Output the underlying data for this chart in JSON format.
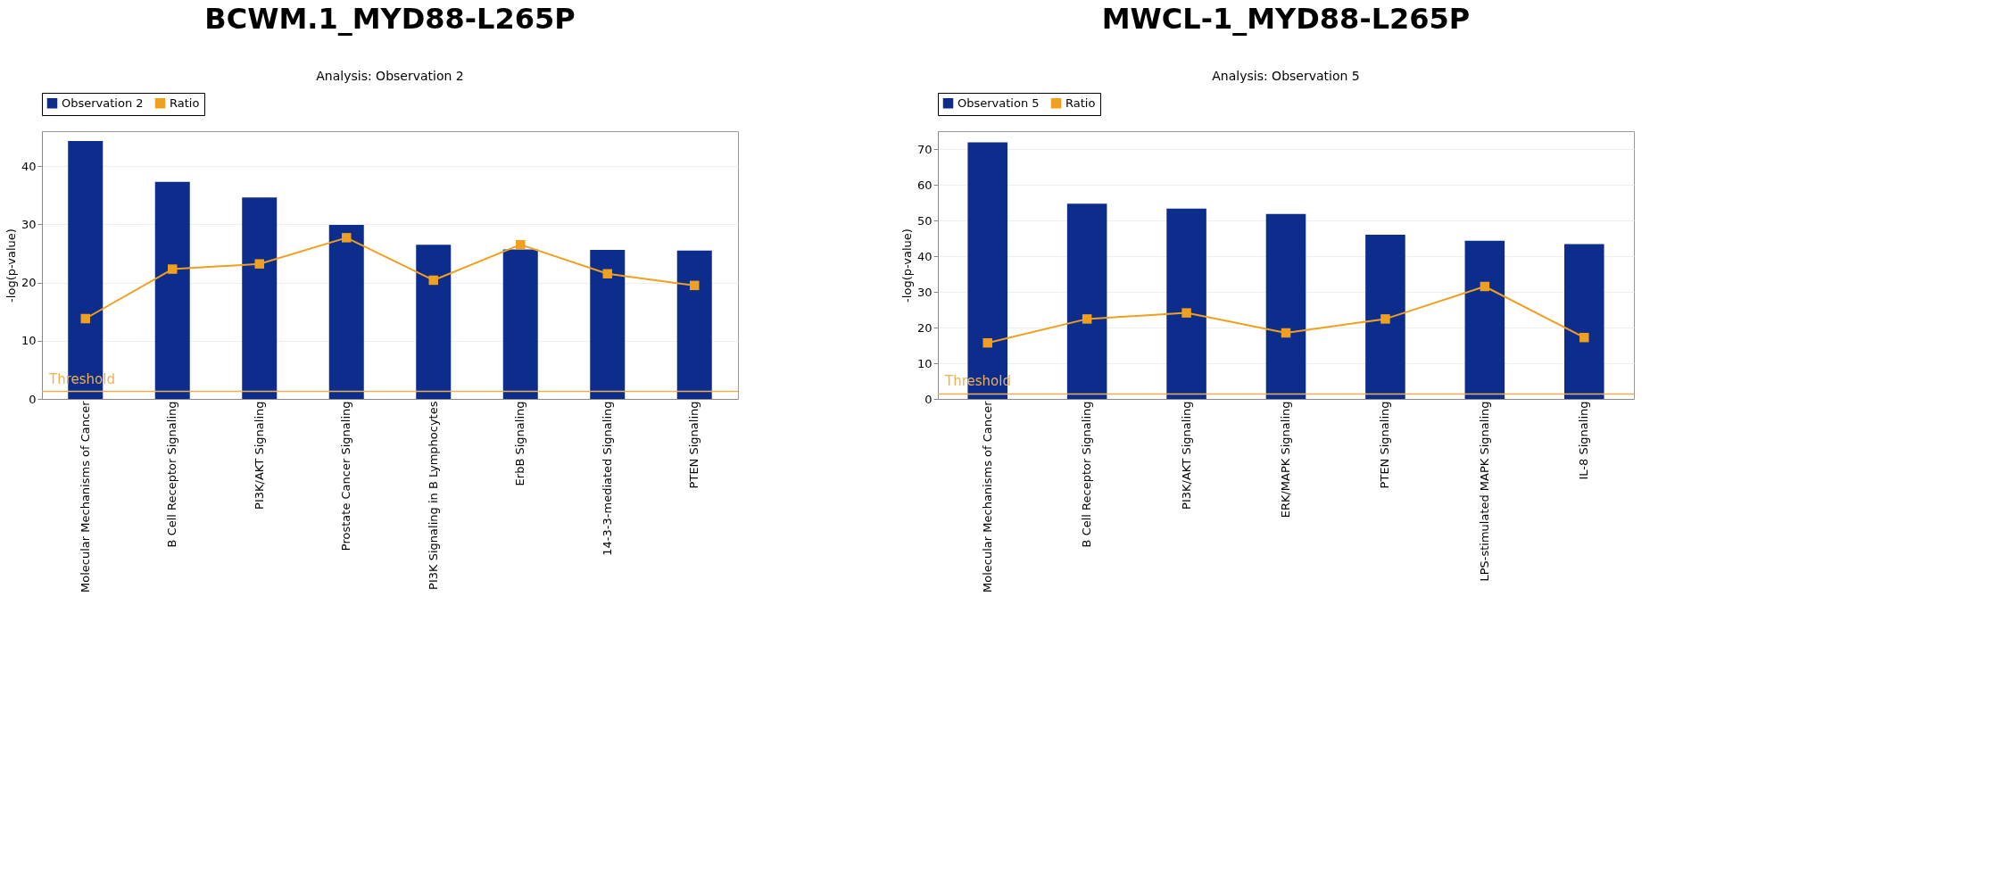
{
  "chart_data": [
    {
      "type": "bar",
      "title": "BCWM.1_MYD88-L265P",
      "subtitle": "Analysis: Observation 2",
      "ylabel": "-log(p-value)",
      "categories": [
        "Molecular Mechanisms of Cancer",
        "B Cell Receptor Signaling",
        "PI3K/AKT Signaling",
        "Prostate Cancer Signaling",
        "PI3K Signaling in B Lymphocytes",
        "ErbB Signaling",
        "14-3-3-mediated Signaling",
        "PTEN Signaling"
      ],
      "series": [
        {
          "name": "Observation 2",
          "color": "#0c2d8c",
          "values": [
            44.3,
            37.3,
            34.6,
            29.9,
            26.5,
            25.7,
            25.6,
            25.5
          ]
        },
        {
          "name": "Ratio",
          "type": "line",
          "color": "#f0a020",
          "values": [
            13.8,
            22.3,
            23.2,
            27.7,
            20.4,
            26.5,
            21.5,
            19.5
          ]
        }
      ],
      "ylim": [
        0,
        46
      ],
      "yticks": [
        0,
        10,
        20,
        30,
        40
      ],
      "grid": "y",
      "legend": "top left",
      "marker": "square",
      "ref_lines": [
        {
          "axis": "y",
          "value": 1.3,
          "label": "Threshold",
          "color": "#f0b050"
        }
      ]
    },
    {
      "type": "bar",
      "title": "MWCL-1_MYD88-L265P",
      "subtitle": "Analysis: Observation 5",
      "ylabel": "-log(p-value)",
      "categories": [
        "Molecular Mechanisms of Cancer",
        "B Cell Receptor Signaling",
        "PI3K/AKT Signaling",
        "ERK/MAPK Signaling",
        "PTEN Signaling",
        "LPS-stimulated MAPK Signaling",
        "IL-8 Signaling"
      ],
      "series": [
        {
          "name": "Observation 5",
          "color": "#0c2d8c",
          "values": [
            71.9,
            54.7,
            53.3,
            51.8,
            46.0,
            44.3,
            43.4
          ]
        },
        {
          "name": "Ratio",
          "type": "line",
          "color": "#f0a020",
          "values": [
            15.7,
            22.4,
            24.1,
            18.5,
            22.4,
            31.5,
            17.2
          ]
        }
      ],
      "ylim": [
        0,
        75
      ],
      "yticks": [
        0,
        10,
        20,
        30,
        40,
        50,
        60,
        70
      ],
      "grid": "y",
      "legend": "top left",
      "marker": "square",
      "ref_lines": [
        {
          "axis": "y",
          "value": 1.4,
          "label": "Threshold",
          "color": "#f0b050"
        }
      ]
    }
  ]
}
